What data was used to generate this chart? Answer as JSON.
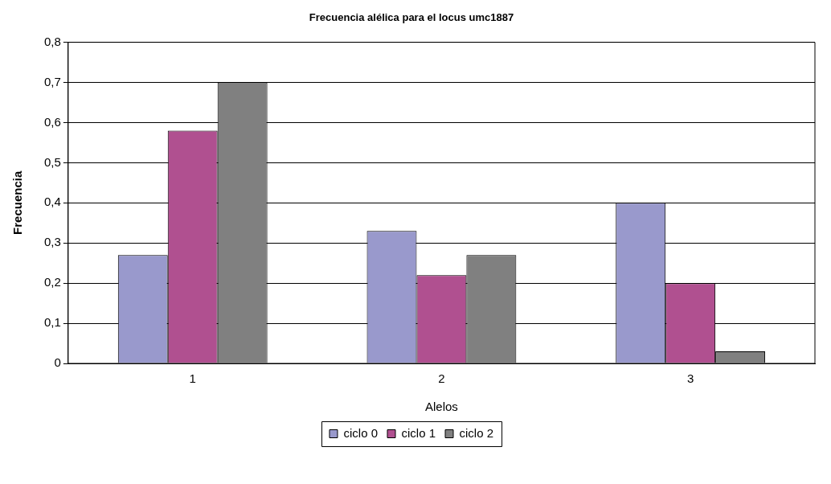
{
  "chart_data": {
    "type": "bar",
    "title": "Frecuencia alélica para el locus umc1887",
    "xlabel": "Alelos",
    "ylabel": "Frecuencia",
    "categories": [
      "1",
      "2",
      "3"
    ],
    "series": [
      {
        "name": "ciclo 0",
        "color": "#9999cc",
        "values": [
          0.27,
          0.33,
          0.4
        ]
      },
      {
        "name": "ciclo 1",
        "color": "#b05090",
        "values": [
          0.58,
          0.22,
          0.2
        ]
      },
      {
        "name": "ciclo 2",
        "color": "#808080",
        "values": [
          0.7,
          0.27,
          0.03
        ]
      }
    ],
    "ylim": [
      0,
      0.8
    ],
    "yticks": [
      {
        "value": 0,
        "label": "0"
      },
      {
        "value": 0.1,
        "label": "0,1"
      },
      {
        "value": 0.2,
        "label": "0,2"
      },
      {
        "value": 0.3,
        "label": "0,3"
      },
      {
        "value": 0.4,
        "label": "0,4"
      },
      {
        "value": 0.5,
        "label": "0,5"
      },
      {
        "value": 0.6,
        "label": "0,6"
      },
      {
        "value": 0.7,
        "label": "0,7"
      },
      {
        "value": 0.8,
        "label": "0,8"
      }
    ],
    "grid": "y",
    "legend": "bottom"
  }
}
